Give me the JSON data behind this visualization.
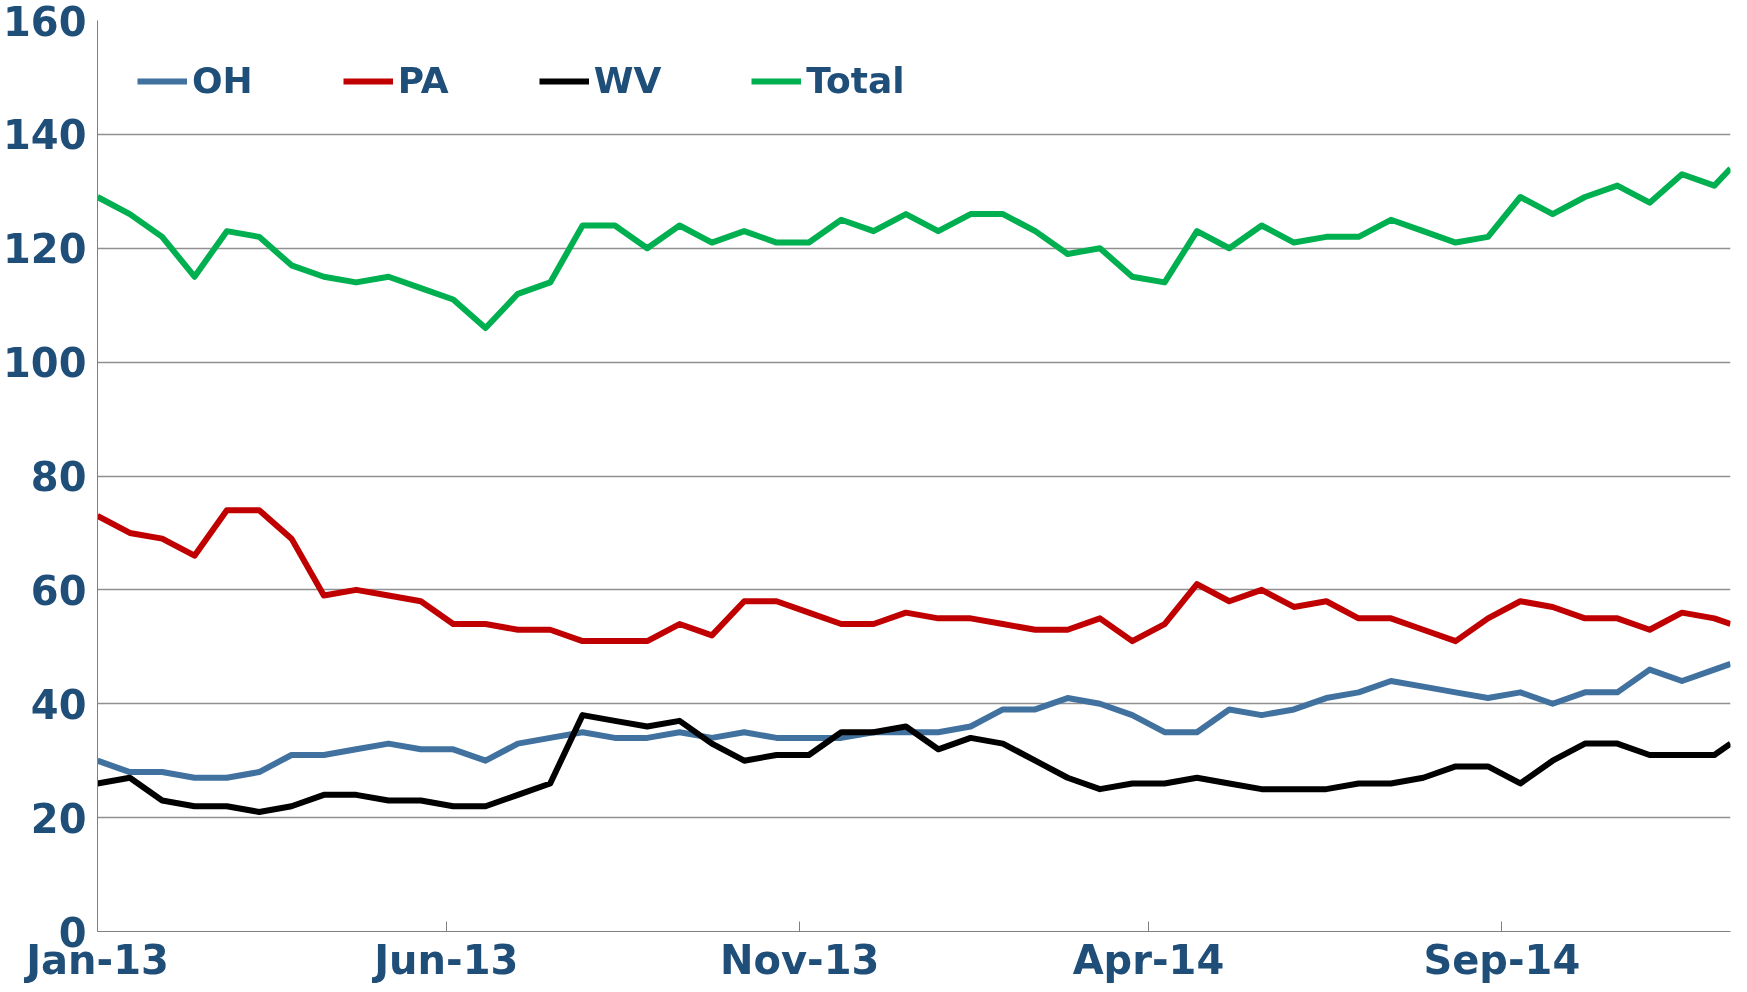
{
  "chart_data": {
    "type": "line",
    "x": [
      "2013-01-01",
      "2013-01-15",
      "2013-01-29",
      "2013-02-12",
      "2013-02-26",
      "2013-03-12",
      "2013-03-26",
      "2013-04-09",
      "2013-04-23",
      "2013-05-07",
      "2013-05-21",
      "2013-06-04",
      "2013-06-18",
      "2013-07-02",
      "2013-07-16",
      "2013-07-30",
      "2013-08-13",
      "2013-08-27",
      "2013-09-10",
      "2013-09-24",
      "2013-10-08",
      "2013-10-22",
      "2013-11-05",
      "2013-11-19",
      "2013-12-03",
      "2013-12-17",
      "2013-12-31",
      "2014-01-14",
      "2014-01-28",
      "2014-02-11",
      "2014-02-25",
      "2014-03-11",
      "2014-03-25",
      "2014-04-08",
      "2014-04-22",
      "2014-05-06",
      "2014-05-20",
      "2014-06-03",
      "2014-06-17",
      "2014-07-01",
      "2014-07-15",
      "2014-07-29",
      "2014-08-12",
      "2014-08-26",
      "2014-09-09",
      "2014-09-23",
      "2014-10-07",
      "2014-10-21",
      "2014-11-04",
      "2014-11-18",
      "2014-12-02",
      "2014-12-09"
    ],
    "series": [
      {
        "name": "OH",
        "color": "#41729f",
        "values": [
          30,
          28,
          28,
          27,
          27,
          28,
          31,
          31,
          32,
          33,
          32,
          32,
          30,
          33,
          34,
          35,
          34,
          34,
          35,
          34,
          35,
          34,
          34,
          34,
          35,
          35,
          35,
          36,
          39,
          39,
          41,
          40,
          38,
          35,
          35,
          39,
          38,
          39,
          41,
          42,
          44,
          43,
          42,
          41,
          42,
          40,
          42,
          42,
          46,
          44,
          46,
          47
        ]
      },
      {
        "name": "PA",
        "color": "#c00000",
        "values": [
          73,
          70,
          69,
          66,
          74,
          74,
          69,
          59,
          60,
          59,
          58,
          54,
          54,
          53,
          53,
          51,
          51,
          51,
          54,
          52,
          58,
          58,
          56,
          54,
          54,
          56,
          55,
          55,
          54,
          53,
          53,
          55,
          51,
          54,
          61,
          58,
          60,
          57,
          58,
          55,
          55,
          53,
          51,
          55,
          58,
          57,
          55,
          55,
          53,
          56,
          55,
          54
        ]
      },
      {
        "name": "WV",
        "color": "#000000",
        "values": [
          26,
          27,
          23,
          22,
          22,
          21,
          22,
          24,
          24,
          23,
          23,
          22,
          22,
          24,
          26,
          38,
          37,
          36,
          37,
          33,
          30,
          31,
          31,
          35,
          35,
          36,
          32,
          34,
          33,
          30,
          27,
          25,
          26,
          26,
          27,
          26,
          25,
          25,
          25,
          26,
          26,
          27,
          29,
          29,
          26,
          30,
          33,
          33,
          31,
          31,
          31,
          33
        ]
      },
      {
        "name": "Total",
        "color": "#00b050",
        "values": [
          129,
          126,
          122,
          115,
          123,
          122,
          117,
          115,
          114,
          115,
          113,
          111,
          106,
          112,
          114,
          124,
          124,
          120,
          124,
          121,
          123,
          121,
          121,
          125,
          123,
          126,
          123,
          126,
          126,
          123,
          119,
          120,
          115,
          114,
          123,
          120,
          124,
          121,
          122,
          122,
          125,
          123,
          121,
          122,
          129,
          126,
          129,
          131,
          128,
          133,
          131,
          134
        ]
      }
    ],
    "xlim": [
      "2013-01-01",
      "2014-12-09"
    ],
    "xticks": [
      {
        "value": "2013-01-01",
        "label": "Jan-13"
      },
      {
        "value": "2013-06-01",
        "label": "Jun-13"
      },
      {
        "value": "2013-11-01",
        "label": "Nov-13"
      },
      {
        "value": "2014-04-01",
        "label": "Apr-14"
      },
      {
        "value": "2014-09-01",
        "label": "Sep-14"
      }
    ],
    "ylim": [
      0,
      160
    ],
    "yticks": [
      0,
      20,
      40,
      60,
      80,
      100,
      120,
      140,
      160
    ],
    "grid": "y",
    "legend": "top left",
    "marker": "none",
    "line_style": "solid"
  }
}
